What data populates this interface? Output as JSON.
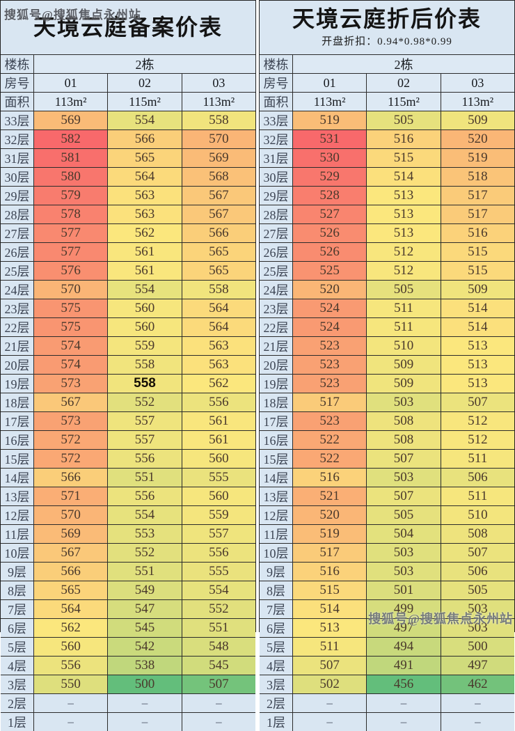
{
  "watermark": {
    "text": "搜狐号@搜狐焦点永州站"
  },
  "floor_suffix": "层",
  "floors": [
    33,
    32,
    31,
    30,
    29,
    28,
    27,
    26,
    25,
    24,
    23,
    22,
    21,
    20,
    19,
    18,
    17,
    16,
    15,
    14,
    13,
    12,
    11,
    10,
    9,
    8,
    7,
    6,
    5,
    4,
    3,
    2,
    1
  ],
  "heatmap_scale": {
    "min_color": "#63BE7B",
    "mid_color": "#FBE77D",
    "max_color": "#F8696B",
    "label_bg": "#d9e6f2",
    "border_color": "#2b2b2b"
  },
  "chart_data": [
    {
      "type": "table",
      "title": "天境云庭备案价表",
      "subtitle": "",
      "header": {
        "building_label": "楼栋",
        "building_value": "2栋",
        "room_label": "房号",
        "rooms": [
          "01",
          "02",
          "03"
        ],
        "area_label": "面积",
        "areas": [
          "113m²",
          "115m²",
          "113m²"
        ]
      },
      "rows": [
        [
          569,
          554,
          558
        ],
        [
          582,
          566,
          570
        ],
        [
          581,
          565,
          569
        ],
        [
          580,
          564,
          568
        ],
        [
          579,
          563,
          567
        ],
        [
          578,
          563,
          567
        ],
        [
          577,
          562,
          566
        ],
        [
          577,
          561,
          565
        ],
        [
          576,
          561,
          565
        ],
        [
          570,
          554,
          558
        ],
        [
          575,
          560,
          564
        ],
        [
          575,
          560,
          564
        ],
        [
          574,
          559,
          563
        ],
        [
          574,
          558,
          563
        ],
        [
          573,
          558,
          562
        ],
        [
          567,
          552,
          556
        ],
        [
          573,
          557,
          561
        ],
        [
          572,
          557,
          561
        ],
        [
          572,
          556,
          560
        ],
        [
          566,
          551,
          555
        ],
        [
          571,
          556,
          560
        ],
        [
          570,
          554,
          559
        ],
        [
          569,
          553,
          557
        ],
        [
          567,
          552,
          556
        ],
        [
          566,
          551,
          555
        ],
        [
          565,
          549,
          554
        ],
        [
          564,
          547,
          552
        ],
        [
          562,
          545,
          551
        ],
        [
          560,
          542,
          548
        ],
        [
          556,
          538,
          545
        ],
        [
          550,
          500,
          507
        ],
        [
          "–",
          "–",
          "–"
        ],
        [
          "–",
          "–",
          "–"
        ]
      ],
      "bold_cell": {
        "floor": 19,
        "col_index": 1
      },
      "color_scale_note": "3-color scale green(min)-yellow(median)-red(max)"
    },
    {
      "type": "table",
      "title": "天境云庭折后价表",
      "subtitle": "开盘折扣：0.94*0.98*0.99",
      "header": {
        "building_label": "楼栋",
        "building_value": "2栋",
        "room_label": "房号",
        "rooms": [
          "01",
          "02",
          "03"
        ],
        "area_label": "面积",
        "areas": [
          "113m²",
          "115m²",
          "113m²"
        ]
      },
      "rows": [
        [
          519,
          505,
          509
        ],
        [
          531,
          516,
          520
        ],
        [
          530,
          515,
          519
        ],
        [
          529,
          514,
          518
        ],
        [
          528,
          513,
          517
        ],
        [
          527,
          513,
          517
        ],
        [
          526,
          513,
          516
        ],
        [
          526,
          512,
          515
        ],
        [
          525,
          512,
          515
        ],
        [
          520,
          505,
          509
        ],
        [
          524,
          511,
          514
        ],
        [
          524,
          511,
          514
        ],
        [
          523,
          510,
          513
        ],
        [
          523,
          509,
          513
        ],
        [
          523,
          509,
          513
        ],
        [
          517,
          503,
          507
        ],
        [
          523,
          508,
          512
        ],
        [
          522,
          508,
          512
        ],
        [
          522,
          507,
          511
        ],
        [
          516,
          503,
          506
        ],
        [
          521,
          507,
          511
        ],
        [
          520,
          505,
          510
        ],
        [
          519,
          504,
          508
        ],
        [
          517,
          503,
          507
        ],
        [
          516,
          503,
          506
        ],
        [
          515,
          501,
          505
        ],
        [
          514,
          499,
          503
        ],
        [
          513,
          497,
          503
        ],
        [
          511,
          494,
          500
        ],
        [
          507,
          491,
          497
        ],
        [
          502,
          456,
          462
        ],
        [
          "–",
          "–",
          "–"
        ],
        [
          "–",
          "–",
          "–"
        ]
      ],
      "bold_cell": null,
      "color_scale_note": "3-color scale green(min)-yellow(median)-red(max)"
    }
  ]
}
